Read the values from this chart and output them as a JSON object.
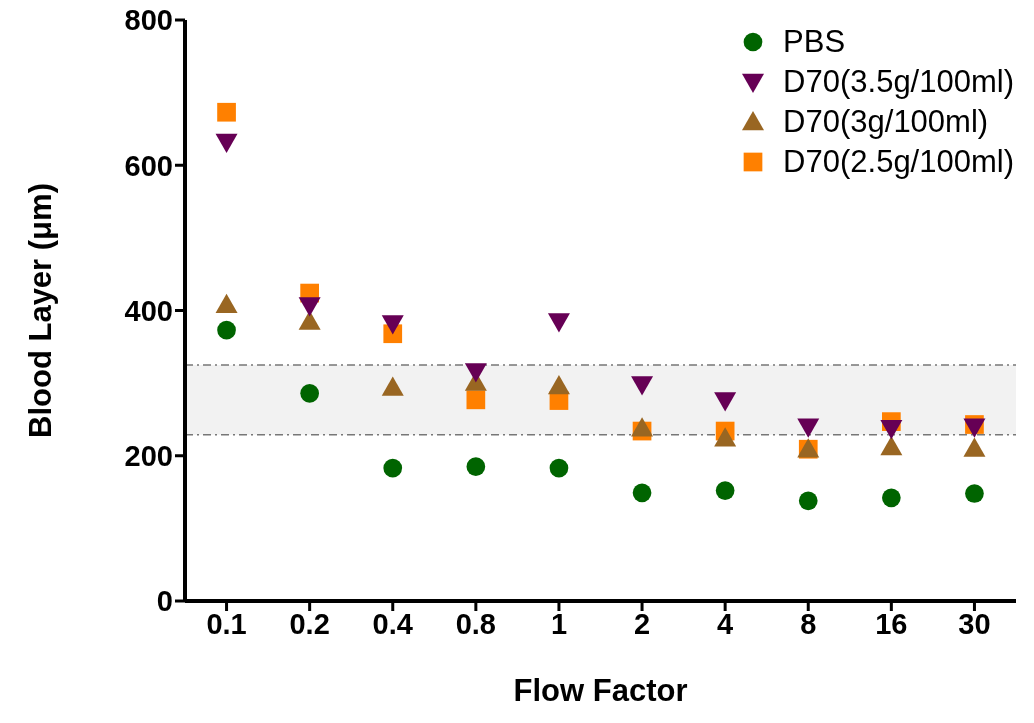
{
  "chart_data": {
    "type": "scatter",
    "xlabel": "Flow Factor",
    "ylabel": "Blood Layer (μm)",
    "categories": [
      "0.1",
      "0.2",
      "0.4",
      "0.8",
      "1",
      "2",
      "4",
      "8",
      "16",
      "30"
    ],
    "series": [
      {
        "name": "PBS",
        "color": "#006400",
        "marker": "circle",
        "values": [
          373,
          286,
          183,
          185,
          183,
          149,
          152,
          138,
          142,
          148
        ]
      },
      {
        "name": "D70(3.5g/100ml)",
        "color": "#660055",
        "marker": "triangle-down",
        "values": [
          632,
          407,
          382,
          316,
          385,
          298,
          276,
          240,
          238,
          240
        ]
      },
      {
        "name": "D70(3g/100ml)",
        "color": "#996622",
        "marker": "triangle",
        "values": [
          408,
          385,
          294,
          301,
          296,
          238,
          224,
          209,
          212,
          210
        ]
      },
      {
        "name": "D70(2.5g/100ml)",
        "color": "#ff8000",
        "marker": "square",
        "values": [
          673,
          424,
          368,
          277,
          276,
          234,
          234,
          209,
          247,
          243
        ]
      }
    ],
    "bands": [
      {
        "axis": "y",
        "from": 229,
        "to": 325,
        "color": "#f2f2f2"
      }
    ],
    "ref_lines": [
      {
        "axis": "y",
        "value": 229,
        "color": "#777777",
        "line_style": "dashed"
      },
      {
        "axis": "y",
        "value": 325,
        "color": "#777777",
        "line_style": "dashed"
      }
    ],
    "ylim": [
      0,
      800
    ],
    "yticks": [
      0,
      200,
      400,
      600,
      800
    ],
    "grid": false,
    "legend": "top right"
  }
}
